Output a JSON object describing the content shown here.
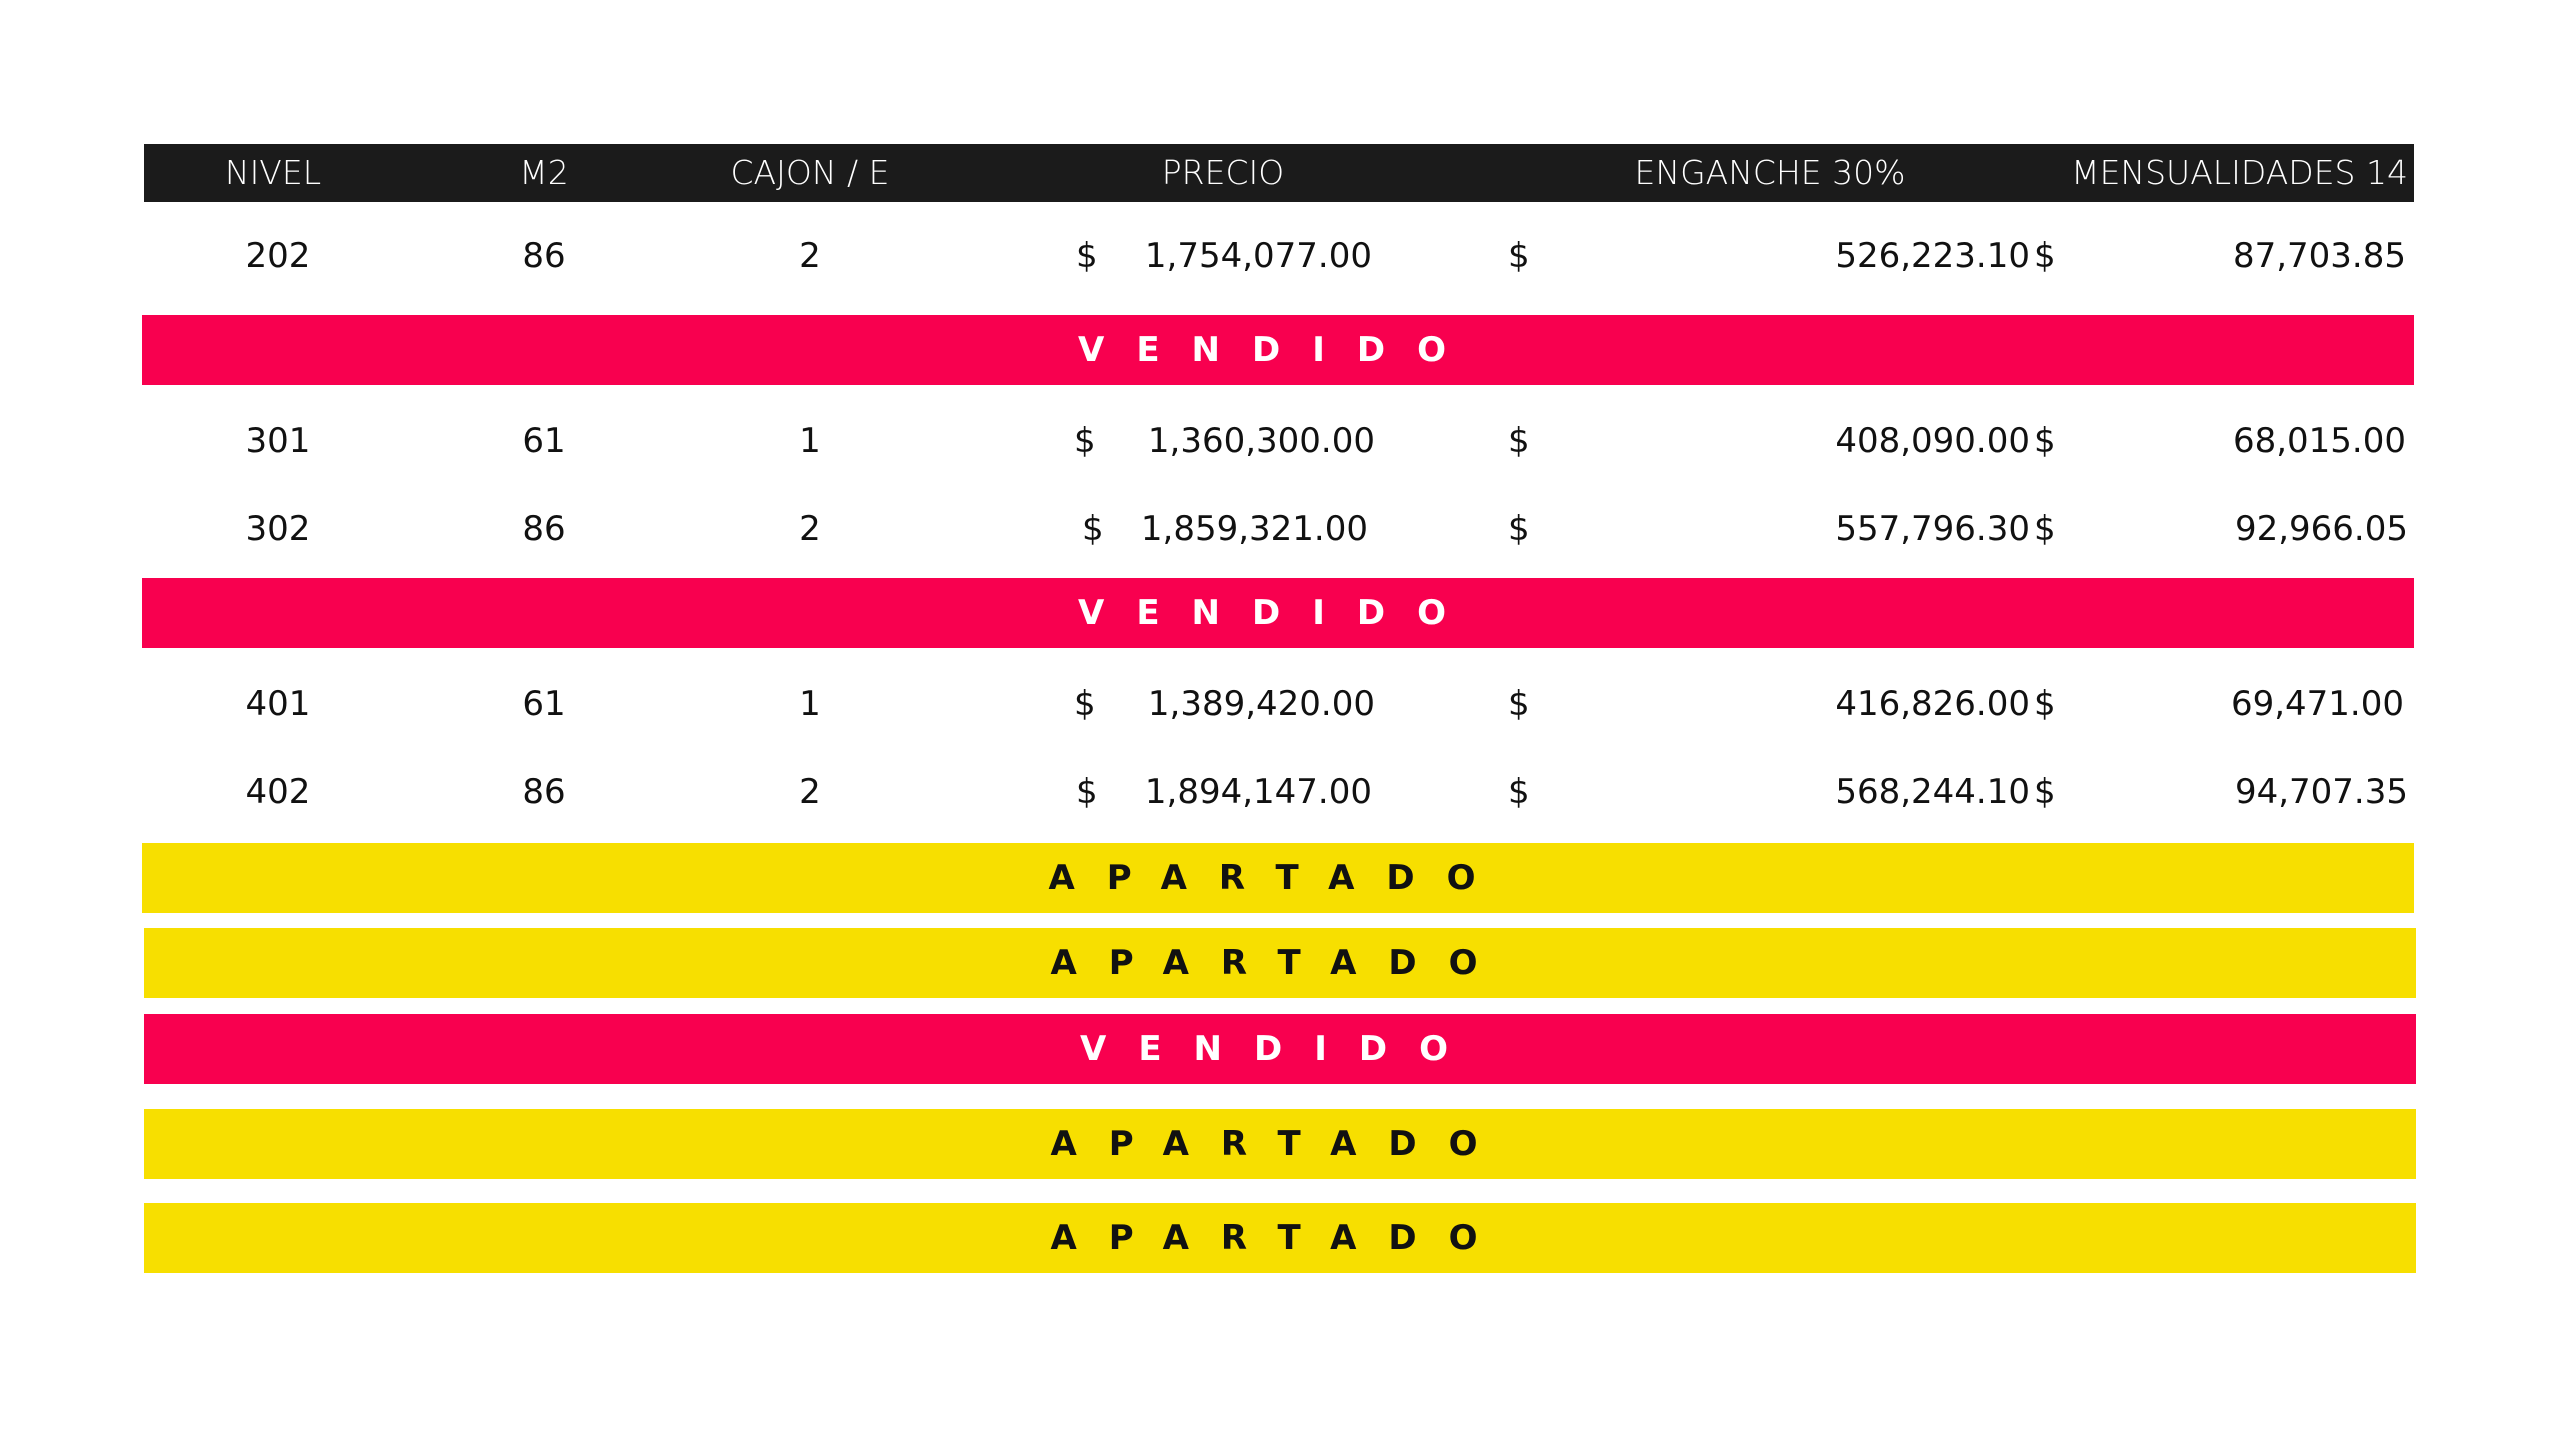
{
  "header": {
    "nivel": "NIVEL",
    "m2": "M2",
    "cajon": "CAJON / E",
    "precio": "PRECIO",
    "enganche": "ENGANCHE 30%",
    "mensualidades": "MENSUALIDADES 14"
  },
  "currency_symbol": "$",
  "units": [
    {
      "nivel": "202",
      "m2": "86",
      "cajon": "2",
      "precio": "1,754,077.00",
      "enganche": "526,223.10",
      "mensualidad": "87,703.85"
    },
    {
      "nivel": "301",
      "m2": "61",
      "cajon": "1",
      "precio": "1,360,300.00",
      "enganche": "408,090.00",
      "mensualidad": "68,015.00"
    },
    {
      "nivel": "302",
      "m2": "86",
      "cajon": "2",
      "precio": "1,859,321.00",
      "enganche": "557,796.30",
      "mensualidad": "92,966.05"
    },
    {
      "nivel": "401",
      "m2": "61",
      "cajon": "1",
      "precio": "1,389,420.00",
      "enganche": "416,826.00",
      "mensualidad": "69,471.00"
    },
    {
      "nivel": "402",
      "m2": "86",
      "cajon": "2",
      "precio": "1,894,147.00",
      "enganche": "568,244.10",
      "mensualidad": "94,707.35"
    }
  ],
  "status_bars": [
    {
      "label": "VENDIDO",
      "color": "#f8004f"
    },
    {
      "label": "VENDIDO",
      "color": "#f8004f"
    },
    {
      "label": "APARTADO",
      "color": "#f7df00"
    },
    {
      "label": "APARTADO",
      "color": "#f7df00"
    },
    {
      "label": "VENDIDO",
      "color": "#f8004f"
    },
    {
      "label": "APARTADO",
      "color": "#f7df00"
    },
    {
      "label": "APARTADO",
      "color": "#f7df00"
    }
  ],
  "colors": {
    "header_bg": "#1b1b1b",
    "vendido": "#f8004f",
    "apartado": "#f7df00"
  }
}
